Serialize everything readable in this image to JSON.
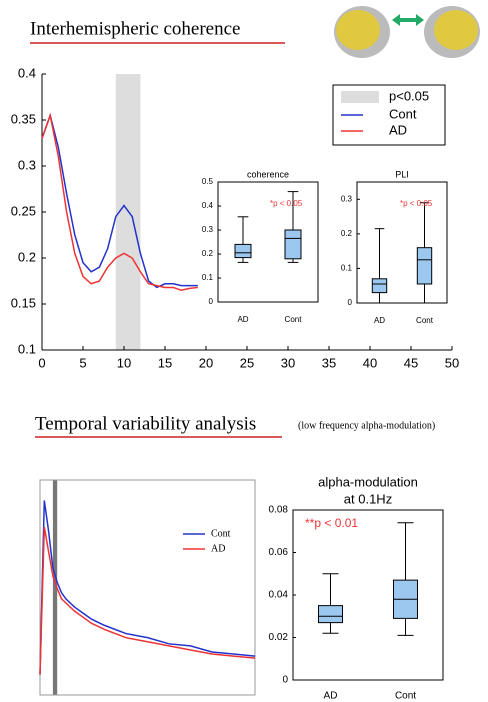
{
  "chart_data": [
    {
      "type": "line",
      "title": "Interhemispheric coherence",
      "x": [
        0,
        1,
        2,
        3,
        4,
        5,
        6,
        7,
        8,
        9,
        10,
        11,
        12,
        13,
        14,
        15,
        16,
        17,
        18,
        19
      ],
      "series": [
        {
          "name": "Cont",
          "color": "#2233cc",
          "values": [
            0.33,
            0.355,
            0.32,
            0.27,
            0.225,
            0.195,
            0.185,
            0.19,
            0.21,
            0.245,
            0.257,
            0.245,
            0.205,
            0.175,
            0.168,
            0.172,
            0.172,
            0.17,
            0.17,
            0.17
          ]
        },
        {
          "name": "AD",
          "color": "#ee3333",
          "values": [
            0.33,
            0.355,
            0.31,
            0.25,
            0.205,
            0.18,
            0.172,
            0.175,
            0.19,
            0.2,
            0.205,
            0.2,
            0.185,
            0.172,
            0.17,
            0.168,
            0.168,
            0.165,
            0.167,
            0.168
          ]
        }
      ],
      "band": {
        "name": "p<0.05",
        "range": [
          9,
          12
        ],
        "color": "#dddddd"
      },
      "xlim": [
        0,
        50
      ],
      "xticks": [
        0,
        5,
        10,
        15,
        20,
        25,
        30,
        35,
        40,
        45,
        50
      ],
      "ylim": [
        0.1,
        0.4
      ],
      "yticks": [
        0.1,
        0.15,
        0.2,
        0.25,
        0.3,
        0.35,
        0.4
      ],
      "legend": "upper right"
    },
    {
      "type": "box",
      "title": "coherence",
      "annotation": "*p < 0.05",
      "categories": [
        "AD",
        "Cont"
      ],
      "stats": [
        {
          "min": 0.165,
          "q1": 0.185,
          "median": 0.205,
          "q3": 0.24,
          "max": 0.355
        },
        {
          "min": 0.165,
          "q1": 0.18,
          "median": 0.265,
          "q3": 0.3,
          "max": 0.46
        }
      ],
      "color": "#9cc8f0",
      "ylim": [
        0,
        0.5
      ],
      "yticks": [
        0,
        0.1,
        0.2,
        0.3,
        0.4,
        0.5
      ]
    },
    {
      "type": "box",
      "title": "PLI",
      "annotation": "*p < 0.05",
      "categories": [
        "AD",
        "Cont"
      ],
      "stats": [
        {
          "min": 0,
          "q1": 0.03,
          "median": 0.055,
          "q3": 0.07,
          "max": 0.215
        },
        {
          "min": 0,
          "q1": 0.055,
          "median": 0.125,
          "q3": 0.16,
          "max": 0.29
        }
      ],
      "color": "#9cc8f0",
      "ylim": [
        0,
        0.35
      ],
      "yticks": [
        0,
        0.1,
        0.2,
        0.3
      ]
    },
    {
      "type": "line",
      "title": "Temporal variability analysis",
      "subtitle": "(low frequency alpha-modulation)",
      "x": [
        0,
        1,
        2,
        3,
        4,
        5,
        6,
        8,
        10,
        12,
        15,
        20,
        25,
        30,
        35,
        40,
        45,
        50
      ],
      "series": [
        {
          "name": "Cont",
          "color": "#2233cc",
          "values": [
            0.1,
            0.95,
            0.8,
            0.62,
            0.55,
            0.5,
            0.47,
            0.43,
            0.4,
            0.37,
            0.34,
            0.3,
            0.28,
            0.25,
            0.24,
            0.21,
            0.2,
            0.19
          ]
        },
        {
          "name": "AD",
          "color": "#ee3333",
          "values": [
            0.1,
            0.82,
            0.7,
            0.58,
            0.52,
            0.47,
            0.45,
            0.41,
            0.38,
            0.35,
            0.32,
            0.28,
            0.26,
            0.24,
            0.22,
            0.2,
            0.19,
            0.18
          ]
        }
      ],
      "band": {
        "range": [
          3,
          4
        ],
        "color": "#777777"
      },
      "xlim": [
        0,
        50
      ],
      "ylim": [
        0,
        1.05
      ],
      "legend": "upper center"
    },
    {
      "type": "box",
      "title": [
        "alpha-modulation",
        "at 0.1Hz"
      ],
      "annotation": "**p < 0.01",
      "categories": [
        "AD",
        "Cont"
      ],
      "stats": [
        {
          "min": 0.022,
          "q1": 0.027,
          "median": 0.03,
          "q3": 0.035,
          "max": 0.05
        },
        {
          "min": 0.021,
          "q1": 0.029,
          "median": 0.038,
          "q3": 0.047,
          "max": 0.074
        }
      ],
      "color": "#9cc8f0",
      "ylim": [
        0,
        0.08
      ],
      "yticks": [
        0,
        0.02,
        0.04,
        0.06,
        0.08
      ]
    }
  ]
}
